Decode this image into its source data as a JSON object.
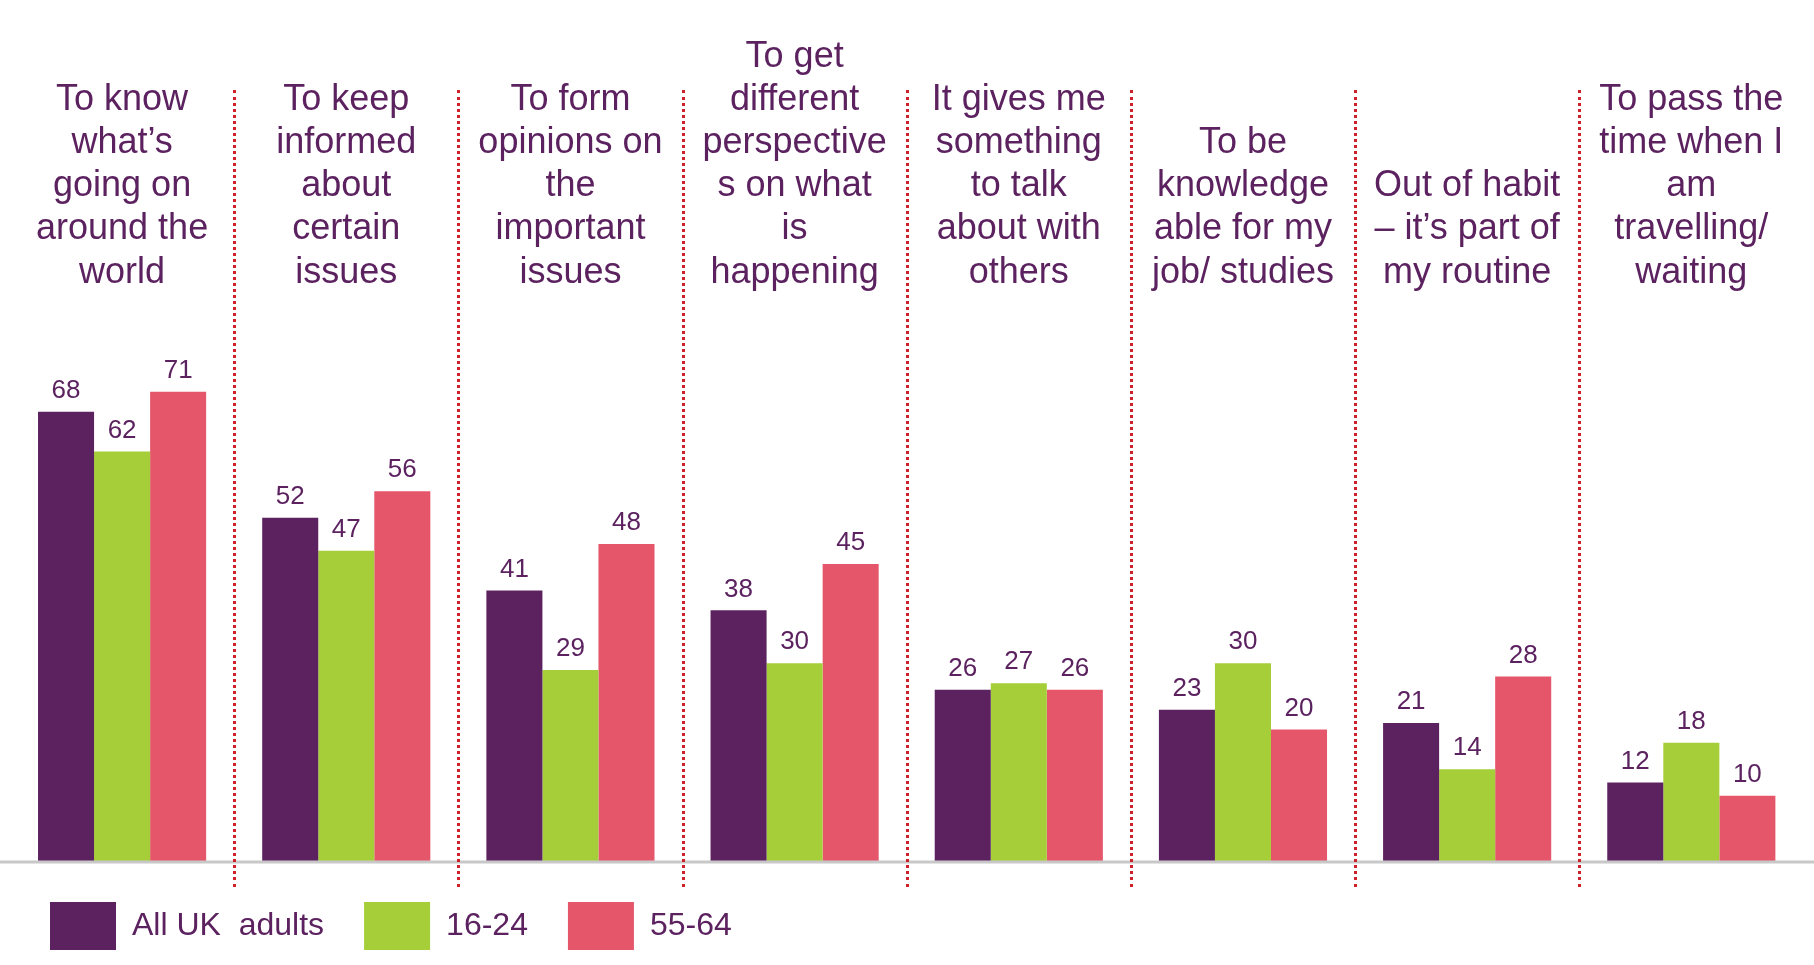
{
  "chart_data": {
    "type": "bar",
    "categories": [
      "To know what’s going on around the world",
      "To keep informed about certain issues",
      "To form opinions on the important issues",
      "To get different perspectives on what is happening",
      "It gives me something to talk about with others",
      "To be knowledgeable for my job/ studies",
      "Out of habit – it’s part of my routine",
      "To pass the time when I am travelling/ waiting"
    ],
    "series": [
      {
        "name": "All UK  adults",
        "color": "#5c2260",
        "values": [
          68,
          52,
          41,
          38,
          26,
          23,
          21,
          12
        ]
      },
      {
        "name": "16-24",
        "color": "#a6ce39",
        "values": [
          62,
          47,
          29,
          30,
          27,
          30,
          14,
          18
        ]
      },
      {
        "name": "55-64",
        "color": "#e5566a",
        "values": [
          71,
          56,
          48,
          45,
          26,
          20,
          28,
          10
        ]
      }
    ],
    "data_labels": true,
    "legend": "bottom left",
    "grid": false
  }
}
